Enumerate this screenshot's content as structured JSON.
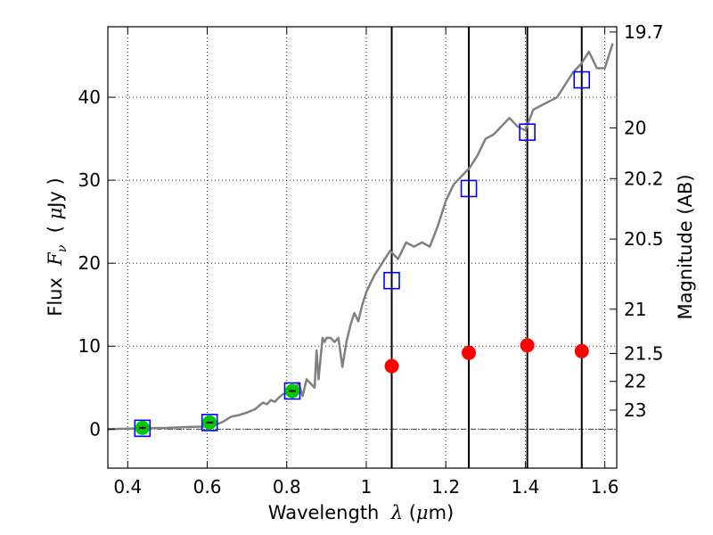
{
  "chart_data": {
    "type": "scatter",
    "xlabel_parts": {
      "prefix": "Wavelength  ",
      "symbol": "λ",
      "unit_open": " (",
      "unit_symbol": "μ",
      "unit_close": "m)"
    },
    "ylabel_parts": {
      "prefix": "Flux  ",
      "symbol": "F",
      "subscript": "ν",
      "unit_open": "  ( ",
      "unit_symbol": "μ",
      "unit_close": "Jy )"
    },
    "y2label": "Magnitude (AB)",
    "xlim": [
      0.35,
      1.63
    ],
    "ylim": [
      -4.7,
      48.5
    ],
    "grid": true,
    "xticks": [
      {
        "value": 0.4,
        "label": "0.4"
      },
      {
        "value": 0.6,
        "label": "0.6"
      },
      {
        "value": 0.8,
        "label": "0.8"
      },
      {
        "value": 1.0,
        "label": "1"
      },
      {
        "value": 1.2,
        "label": "1.2"
      },
      {
        "value": 1.4,
        "label": "1.4"
      },
      {
        "value": 1.6,
        "label": "1.6"
      }
    ],
    "yticks": [
      {
        "value": 0,
        "label": "0"
      },
      {
        "value": 10,
        "label": "10"
      },
      {
        "value": 20,
        "label": "20"
      },
      {
        "value": 30,
        "label": "30"
      },
      {
        "value": 40,
        "label": "40"
      }
    ],
    "y2ticks": [
      {
        "value": 19.7,
        "label": "19.7"
      },
      {
        "value": 20,
        "label": "20"
      },
      {
        "value": 20.2,
        "label": "20.2"
      },
      {
        "value": 20.5,
        "label": "20.5"
      },
      {
        "value": 21,
        "label": "21"
      },
      {
        "value": 21.5,
        "label": "21.5"
      },
      {
        "value": 22,
        "label": "22"
      },
      {
        "value": 23,
        "label": "23"
      }
    ],
    "vertical_lines_x": [
      1.064,
      1.258,
      1.405,
      1.542
    ],
    "series": [
      {
        "role": "model-spectrum",
        "color": "#808080",
        "x": [
          0.35,
          0.4,
          0.45,
          0.5,
          0.55,
          0.59,
          0.62,
          0.64,
          0.66,
          0.68,
          0.7,
          0.72,
          0.74,
          0.75,
          0.76,
          0.77,
          0.78,
          0.79,
          0.8,
          0.82,
          0.83,
          0.84,
          0.85,
          0.86,
          0.87,
          0.875,
          0.88,
          0.89,
          0.895,
          0.9,
          0.91,
          0.92,
          0.93,
          0.94,
          0.95,
          0.96,
          0.97,
          0.98,
          0.99,
          1.0,
          1.02,
          1.04,
          1.06,
          1.08,
          1.1,
          1.12,
          1.14,
          1.16,
          1.18,
          1.2,
          1.22,
          1.24,
          1.26,
          1.28,
          1.3,
          1.32,
          1.34,
          1.36,
          1.38,
          1.4,
          1.42,
          1.44,
          1.46,
          1.48,
          1.5,
          1.52,
          1.54,
          1.56,
          1.58,
          1.6,
          1.62
        ],
        "y": [
          0.0,
          0.05,
          0.1,
          0.15,
          0.25,
          0.3,
          0.5,
          0.9,
          1.5,
          1.7,
          2.0,
          2.4,
          3.2,
          3.0,
          3.5,
          3.3,
          3.8,
          4.2,
          4.3,
          5.0,
          5.5,
          4.0,
          6.0,
          5.5,
          5.0,
          9.5,
          6.0,
          11.0,
          10.5,
          11.0,
          11.0,
          10.5,
          11.0,
          7.5,
          10.5,
          12.5,
          14.0,
          13.0,
          15.0,
          16.5,
          18.5,
          20.0,
          21.5,
          20.5,
          22.5,
          22.0,
          22.5,
          22.0,
          24.5,
          27.5,
          29.5,
          30.5,
          31.5,
          33.0,
          35.0,
          35.5,
          36.5,
          37.5,
          36.5,
          36.0,
          38.5,
          39.0,
          39.5,
          40.0,
          41.5,
          43.0,
          44.0,
          45.5,
          43.5,
          43.5,
          46.5
        ]
      },
      {
        "role": "model-photometry",
        "marker": "open-square",
        "color": "#0000ff",
        "x": [
          0.437,
          0.606,
          0.814,
          1.064,
          1.258,
          1.405,
          1.542
        ],
        "y": [
          0.1,
          0.8,
          4.6,
          17.9,
          29.0,
          35.8,
          42.1
        ]
      },
      {
        "role": "observed-photometry",
        "marker": "filled-circle",
        "color": "#00c800",
        "x": [
          0.437,
          0.606,
          0.814
        ],
        "y": [
          0.15,
          0.8,
          4.6
        ],
        "yerr": [
          0.3,
          0.3,
          0.3
        ]
      },
      {
        "role": "observed-ir",
        "marker": "filled-circle",
        "color": "#ff0000",
        "x": [
          1.064,
          1.258,
          1.405,
          1.542
        ],
        "y": [
          7.6,
          9.2,
          10.1,
          9.4
        ]
      }
    ],
    "colors": {
      "axes": "#000000",
      "grid": "#000000",
      "vline": "#000000",
      "zero_line": "#000000"
    }
  }
}
